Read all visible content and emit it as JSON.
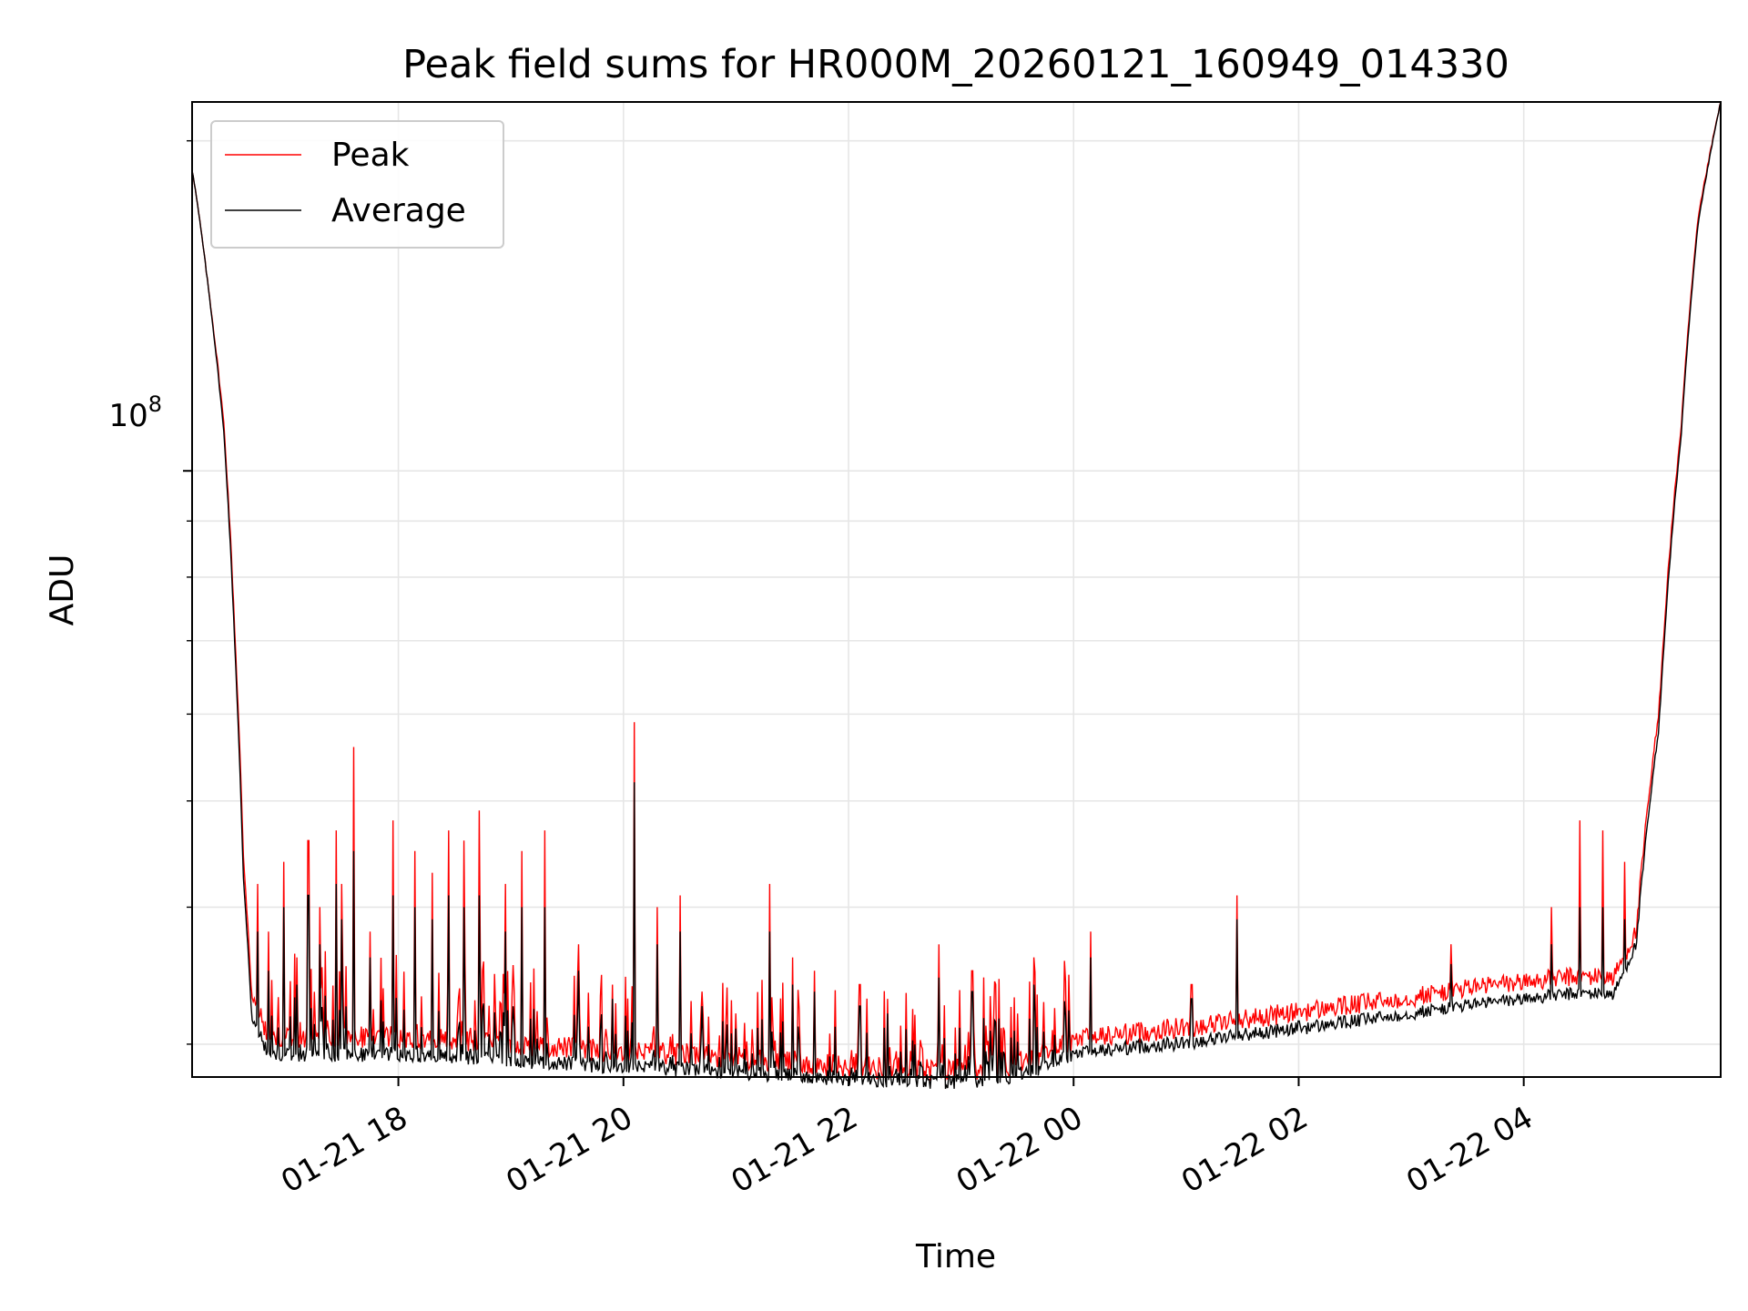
{
  "chart_data": {
    "type": "line",
    "title": "Peak field sums for HR000M_20260121_160949_014330",
    "xlabel": "Time",
    "ylabel": "ADU",
    "y_scale": "log",
    "xlim_hours": [
      16.167,
      29.75
    ],
    "ylim": [
      28000000,
      217000000
    ],
    "x_ticks": [
      {
        "hour": 18,
        "label": "01-21 18"
      },
      {
        "hour": 20,
        "label": "01-21 20"
      },
      {
        "hour": 22,
        "label": "01-21 22"
      },
      {
        "hour": 24,
        "label": "01-22 00"
      },
      {
        "hour": 26,
        "label": "01-22 02"
      },
      {
        "hour": 28,
        "label": "01-22 04"
      }
    ],
    "y_tick_label": {
      "base": "10",
      "exponent": "8",
      "value": 100000000
    },
    "grid": true,
    "legend": {
      "placement": "top-left",
      "entries": [
        {
          "name": "Peak",
          "color": "#ff0000"
        },
        {
          "name": "Average",
          "color": "#000000"
        }
      ]
    },
    "series": [
      {
        "name": "Peak",
        "color": "#ff0000",
        "baseline": [
          [
            16.17,
            188
          ],
          [
            16.3,
            150
          ],
          [
            16.45,
            110
          ],
          [
            16.55,
            70
          ],
          [
            16.62,
            45
          ],
          [
            16.7,
            33
          ],
          [
            16.85,
            30.5
          ],
          [
            17.5,
            30.4
          ],
          [
            18.0,
            30.5
          ],
          [
            19.0,
            30.0
          ],
          [
            19.5,
            29.8
          ],
          [
            20.0,
            29.5
          ],
          [
            20.5,
            29.4
          ],
          [
            21.0,
            29.2
          ],
          [
            21.5,
            28.9
          ],
          [
            22.0,
            28.6
          ],
          [
            22.5,
            28.5
          ],
          [
            23.0,
            28.4
          ],
          [
            23.5,
            28.8
          ],
          [
            23.8,
            29.6
          ],
          [
            24.0,
            30.3
          ],
          [
            24.5,
            30.7
          ],
          [
            25.0,
            31.1
          ],
          [
            25.5,
            31.6
          ],
          [
            26.0,
            32.1
          ],
          [
            26.5,
            32.6
          ],
          [
            27.0,
            33.1
          ],
          [
            27.5,
            33.8
          ],
          [
            28.0,
            34.2
          ],
          [
            28.5,
            34.6
          ],
          [
            28.8,
            34.5
          ],
          [
            29.0,
            38
          ],
          [
            29.2,
            60
          ],
          [
            29.4,
            110
          ],
          [
            29.55,
            170
          ],
          [
            29.75,
            217
          ]
        ],
        "spikes": [
          [
            16.75,
            42
          ],
          [
            16.85,
            38
          ],
          [
            16.98,
            44
          ],
          [
            17.1,
            36
          ],
          [
            17.2,
            46
          ],
          [
            17.3,
            40
          ],
          [
            17.45,
            47
          ],
          [
            17.5,
            42
          ],
          [
            17.6,
            56
          ],
          [
            17.75,
            38
          ],
          [
            17.95,
            48
          ],
          [
            18.15,
            45
          ],
          [
            18.3,
            43
          ],
          [
            18.45,
            47
          ],
          [
            18.58,
            46
          ],
          [
            18.72,
            49
          ],
          [
            18.95,
            42
          ],
          [
            19.1,
            45
          ],
          [
            19.3,
            47
          ],
          [
            19.6,
            37
          ],
          [
            19.9,
            34
          ],
          [
            20.1,
            59
          ],
          [
            20.3,
            40
          ],
          [
            20.5,
            41
          ],
          [
            20.7,
            33.5
          ],
          [
            21.0,
            32
          ],
          [
            21.3,
            42
          ],
          [
            21.5,
            36
          ],
          [
            21.7,
            35
          ],
          [
            22.1,
            34
          ],
          [
            22.35,
            33
          ],
          [
            22.8,
            37
          ],
          [
            23.1,
            35
          ],
          [
            23.65,
            36
          ],
          [
            24.15,
            38
          ],
          [
            25.05,
            34
          ],
          [
            25.45,
            41
          ],
          [
            26.0,
            32.3
          ],
          [
            27.35,
            37
          ],
          [
            28.25,
            40
          ],
          [
            28.5,
            48
          ],
          [
            28.7,
            47
          ],
          [
            28.9,
            44
          ]
        ],
        "noise": 0.7
      },
      {
        "name": "Average",
        "color": "#000000",
        "baseline": [
          [
            16.17,
            188
          ],
          [
            16.3,
            150
          ],
          [
            16.45,
            108
          ],
          [
            16.55,
            68
          ],
          [
            16.62,
            43
          ],
          [
            16.7,
            31.5
          ],
          [
            16.85,
            29.4
          ],
          [
            17.5,
            29.3
          ],
          [
            18.0,
            29.4
          ],
          [
            19.0,
            29.0
          ],
          [
            19.5,
            28.8
          ],
          [
            20.0,
            28.6
          ],
          [
            20.5,
            28.5
          ],
          [
            21.0,
            28.3
          ],
          [
            21.5,
            28.1
          ],
          [
            22.0,
            27.9
          ],
          [
            22.5,
            27.8
          ],
          [
            23.0,
            27.7
          ],
          [
            23.5,
            28.1
          ],
          [
            23.8,
            28.8
          ],
          [
            24.0,
            29.4
          ],
          [
            24.5,
            29.8
          ],
          [
            25.0,
            30.1
          ],
          [
            25.5,
            30.6
          ],
          [
            26.0,
            31.0
          ],
          [
            26.5,
            31.5
          ],
          [
            27.0,
            32.0
          ],
          [
            27.5,
            32.6
          ],
          [
            28.0,
            33.0
          ],
          [
            28.5,
            33.4
          ],
          [
            28.8,
            33.3
          ],
          [
            29.0,
            37
          ],
          [
            29.2,
            58
          ],
          [
            29.4,
            108
          ],
          [
            29.55,
            168
          ],
          [
            29.75,
            217
          ]
        ],
        "spikes": [
          [
            16.75,
            38
          ],
          [
            16.85,
            35
          ],
          [
            16.98,
            40
          ],
          [
            17.1,
            34
          ],
          [
            17.2,
            41
          ],
          [
            17.3,
            37
          ],
          [
            17.45,
            42
          ],
          [
            17.5,
            39
          ],
          [
            17.6,
            45
          ],
          [
            17.75,
            36
          ],
          [
            17.95,
            41
          ],
          [
            18.15,
            40
          ],
          [
            18.3,
            39
          ],
          [
            18.45,
            41
          ],
          [
            18.58,
            40
          ],
          [
            18.72,
            41
          ],
          [
            18.95,
            38
          ],
          [
            19.1,
            40
          ],
          [
            19.3,
            40
          ],
          [
            19.6,
            35
          ],
          [
            19.9,
            33
          ],
          [
            20.1,
            52
          ],
          [
            20.3,
            37
          ],
          [
            20.5,
            38
          ],
          [
            20.7,
            32.5
          ],
          [
            21.0,
            31
          ],
          [
            21.3,
            38
          ],
          [
            21.5,
            34
          ],
          [
            21.7,
            33.5
          ],
          [
            22.1,
            32.5
          ],
          [
            22.35,
            32
          ],
          [
            22.8,
            34.5
          ],
          [
            23.1,
            33.5
          ],
          [
            23.65,
            34
          ],
          [
            24.15,
            36
          ],
          [
            25.05,
            33
          ],
          [
            25.45,
            39
          ],
          [
            26.0,
            31.5
          ],
          [
            27.35,
            35.5
          ],
          [
            28.25,
            37
          ],
          [
            28.5,
            40
          ],
          [
            28.7,
            40
          ],
          [
            28.9,
            39
          ]
        ],
        "noise": 0.45
      }
    ]
  }
}
